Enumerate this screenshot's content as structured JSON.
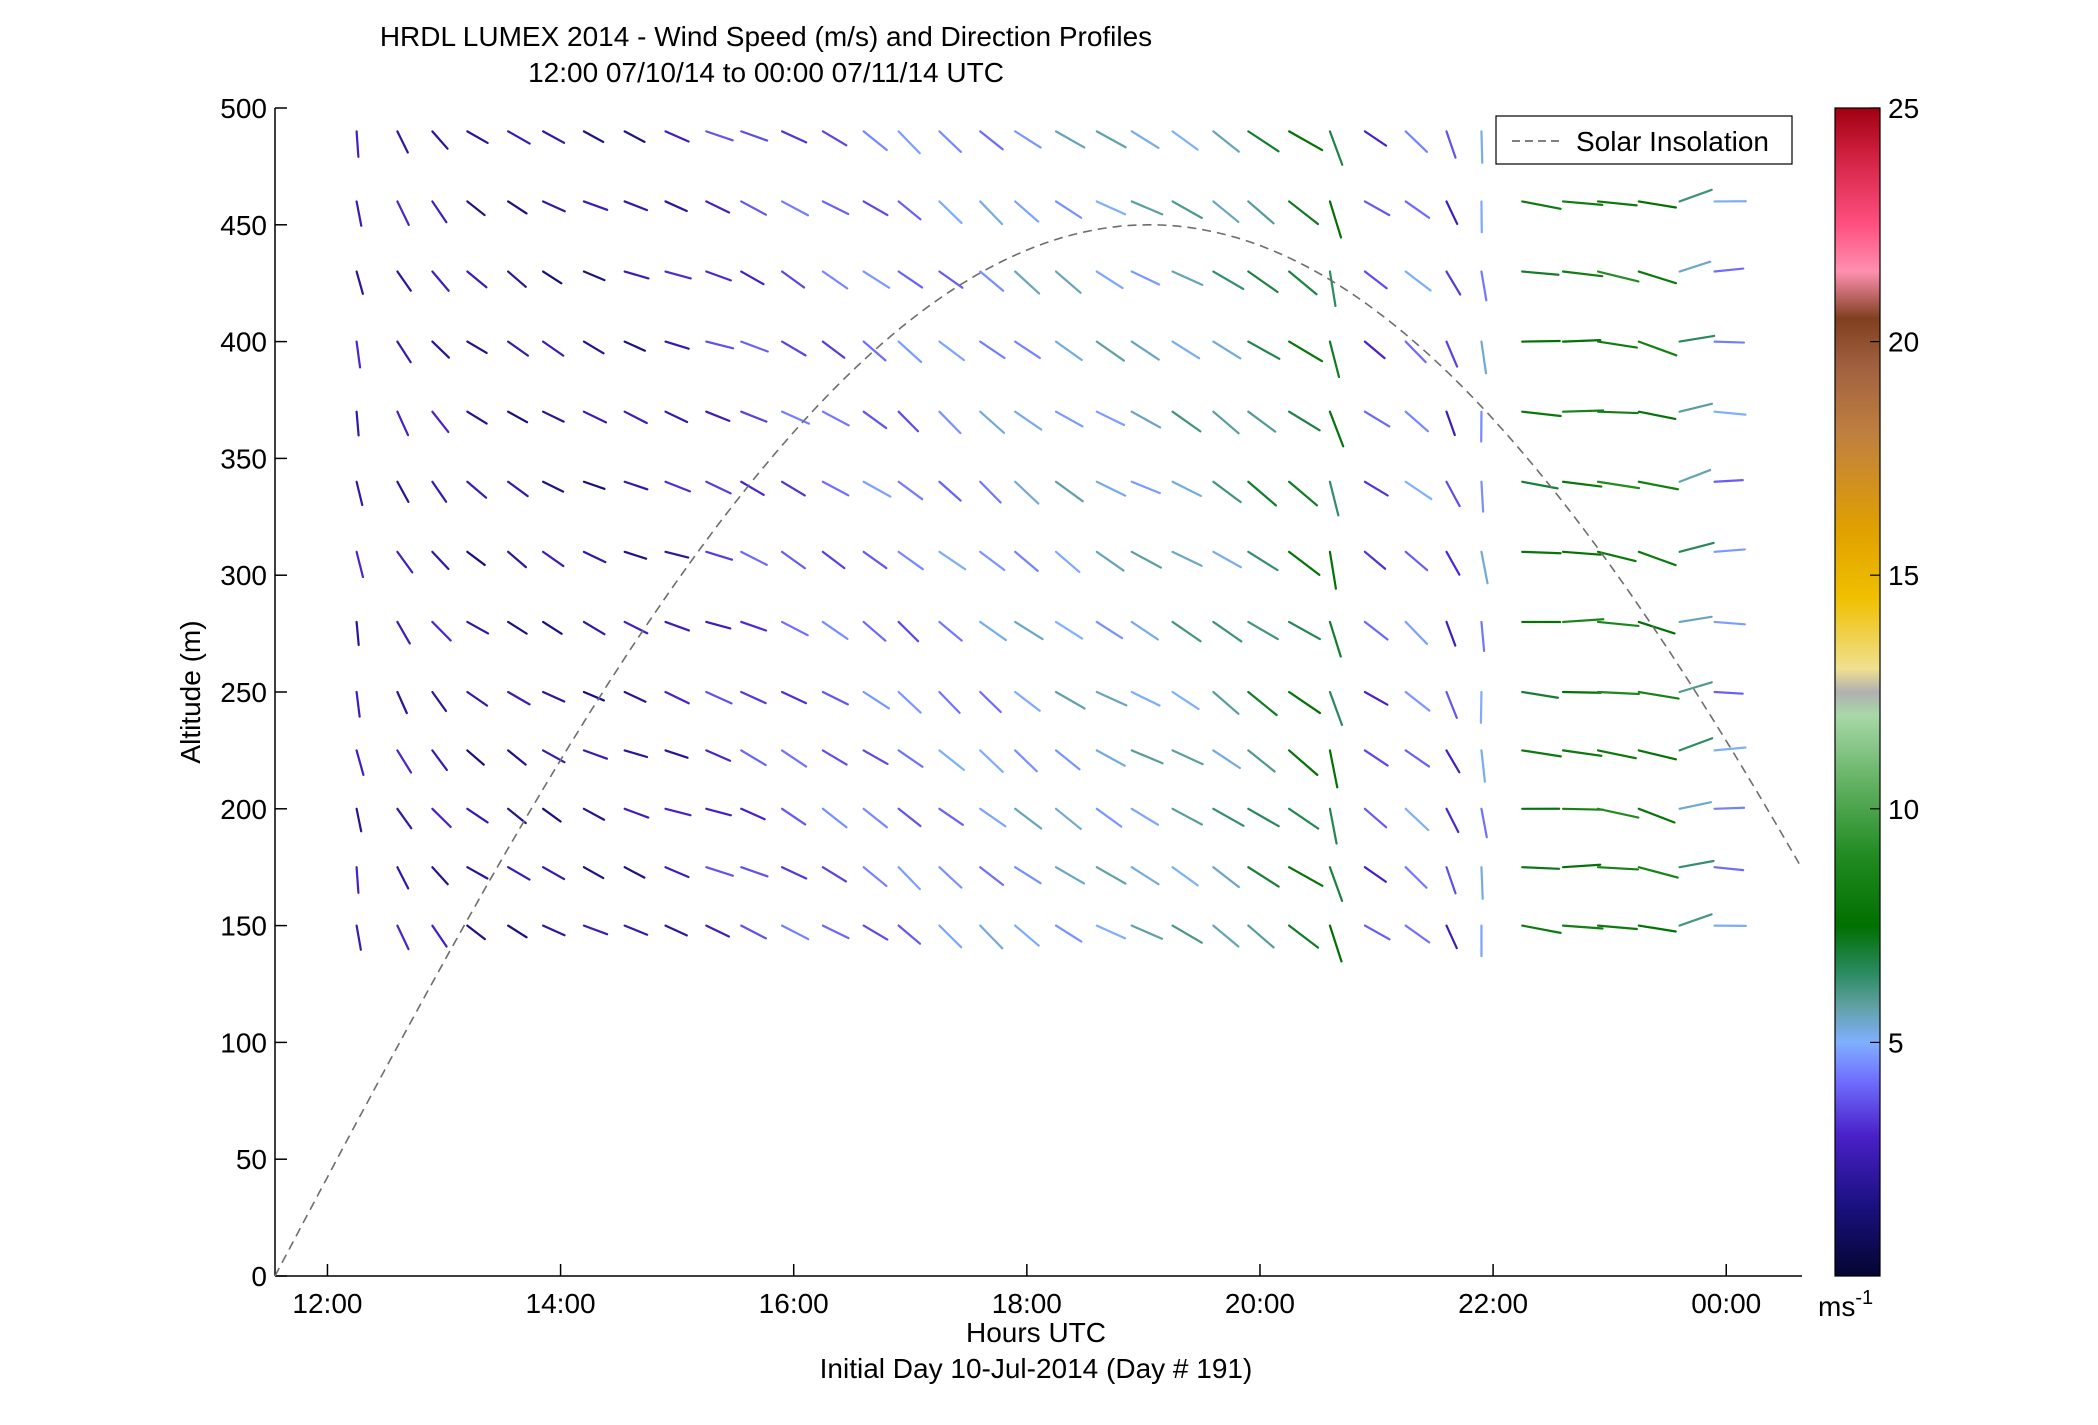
{
  "chart_data": {
    "type": "wind-barb-profile",
    "title_line1": "HRDL LUMEX 2014 - Wind Speed (m/s) and Direction Profiles",
    "title_line2": "12:00 07/10/14 to 00:00 07/11/14  UTC",
    "xlabel": "Hours UTC",
    "xlabel2": "Initial Day 10-Jul-2014 (Day # 191)",
    "ylabel": "Altitude (m)",
    "xlim": [
      11.55,
      24.65
    ],
    "ylim": [
      0,
      500
    ],
    "x_ticks": [
      {
        "value": 12,
        "label": "12:00"
      },
      {
        "value": 14,
        "label": "14:00"
      },
      {
        "value": 16,
        "label": "16:00"
      },
      {
        "value": 18,
        "label": "18:00"
      },
      {
        "value": 20,
        "label": "20:00"
      },
      {
        "value": 22,
        "label": "22:00"
      },
      {
        "value": 24,
        "label": "00:00"
      }
    ],
    "y_ticks": [
      0,
      50,
      100,
      150,
      200,
      250,
      300,
      350,
      400,
      450,
      500
    ],
    "legend": {
      "label": "Solar Insolation",
      "position": "top-right"
    },
    "solar_insolation": {
      "start_hour": 11.55,
      "peak_hour": 19.05,
      "peak_altitude": 450,
      "style": "dashed",
      "color": "#6e6e6e"
    },
    "colorbar": {
      "range": [
        0,
        25
      ],
      "ticks": [
        5,
        10,
        15,
        20,
        25
      ],
      "unit": "ms",
      "unit_sup": "-1",
      "stops": [
        [
          0,
          "#050530"
        ],
        [
          1.5,
          "#1a1080"
        ],
        [
          3,
          "#4a20c8"
        ],
        [
          4.2,
          "#7070ff"
        ],
        [
          5,
          "#7fb0ff"
        ],
        [
          5.8,
          "#5fa0a0"
        ],
        [
          6.5,
          "#2a8a60"
        ],
        [
          7.5,
          "#007000"
        ],
        [
          9,
          "#228b22"
        ],
        [
          10.5,
          "#60b060"
        ],
        [
          12,
          "#a8d8a8"
        ],
        [
          12.5,
          "#b0b0b0"
        ],
        [
          13,
          "#f0e090"
        ],
        [
          14.5,
          "#f0c000"
        ],
        [
          16,
          "#e0a000"
        ],
        [
          18,
          "#c08040"
        ],
        [
          19.5,
          "#a06040"
        ],
        [
          20.5,
          "#804020"
        ],
        [
          21.5,
          "#ff90b0"
        ],
        [
          22.5,
          "#ff5080"
        ],
        [
          24,
          "#d02040"
        ],
        [
          25,
          "#a00010"
        ]
      ]
    },
    "altitudes": [
      150,
      175,
      200,
      225,
      250,
      280,
      310,
      340,
      370,
      400,
      430,
      460,
      490
    ],
    "times": [
      12.25,
      12.6,
      12.9,
      13.2,
      13.55,
      13.85,
      14.2,
      14.55,
      14.9,
      15.25,
      15.55,
      15.9,
      16.25,
      16.6,
      16.9,
      17.25,
      17.6,
      17.9,
      18.25,
      18.6,
      18.9,
      19.25,
      19.6,
      19.9,
      20.25,
      20.6,
      20.9,
      21.25,
      21.6,
      21.9,
      22.25,
      22.6,
      22.9,
      23.25,
      23.6,
      23.9
    ],
    "profile_columns": [
      {
        "time": 12.25,
        "dir": 170,
        "speed": 2.5
      },
      {
        "time": 12.6,
        "dir": 150,
        "speed": 2.5
      },
      {
        "time": 12.9,
        "dir": 140,
        "speed": 2.5
      },
      {
        "time": 13.2,
        "dir": 125,
        "speed": 2
      },
      {
        "time": 13.55,
        "dir": 125,
        "speed": 2
      },
      {
        "time": 13.85,
        "dir": 120,
        "speed": 2
      },
      {
        "time": 14.2,
        "dir": 115,
        "speed": 2
      },
      {
        "time": 14.55,
        "dir": 112,
        "speed": 2.2
      },
      {
        "time": 14.9,
        "dir": 110,
        "speed": 2.6
      },
      {
        "time": 15.25,
        "dir": 110,
        "speed": 3.2
      },
      {
        "time": 15.55,
        "dir": 115,
        "speed": 3.5
      },
      {
        "time": 15.9,
        "dir": 120,
        "speed": 3.8
      },
      {
        "time": 16.25,
        "dir": 122,
        "speed": 4
      },
      {
        "time": 16.6,
        "dir": 125,
        "speed": 4.2
      },
      {
        "time": 16.9,
        "dir": 130,
        "speed": 4.2
      },
      {
        "time": 17.25,
        "dir": 130,
        "speed": 4.5
      },
      {
        "time": 17.6,
        "dir": 130,
        "speed": 4.7
      },
      {
        "time": 17.9,
        "dir": 128,
        "speed": 5
      },
      {
        "time": 18.25,
        "dir": 125,
        "speed": 5.2
      },
      {
        "time": 18.6,
        "dir": 120,
        "speed": 5.2
      },
      {
        "time": 18.9,
        "dir": 118,
        "speed": 5.3
      },
      {
        "time": 19.25,
        "dir": 120,
        "speed": 5.6
      },
      {
        "time": 19.6,
        "dir": 125,
        "speed": 5.8
      },
      {
        "time": 19.9,
        "dir": 125,
        "speed": 6.5
      },
      {
        "time": 20.25,
        "dir": 125,
        "speed": 7.2
      },
      {
        "time": 20.6,
        "dir": 165,
        "speed": 7
      },
      {
        "time": 20.9,
        "dir": 125,
        "speed": 3.5
      },
      {
        "time": 21.25,
        "dir": 130,
        "speed": 4.5
      },
      {
        "time": 21.6,
        "dir": 155,
        "speed": 3.2
      },
      {
        "time": 21.9,
        "dir": 175,
        "speed": 4.8
      },
      {
        "time": 22.25,
        "dir": 95,
        "speed": 7.5
      },
      {
        "time": 22.6,
        "dir": 92,
        "speed": 8
      },
      {
        "time": 22.9,
        "dir": 98,
        "speed": 8.5
      },
      {
        "time": 23.25,
        "dir": 105,
        "speed": 8
      },
      {
        "time": 23.6,
        "dir": 75,
        "speed": 6
      },
      {
        "time": 23.9,
        "dir": 90,
        "speed": 4.5
      }
    ]
  }
}
